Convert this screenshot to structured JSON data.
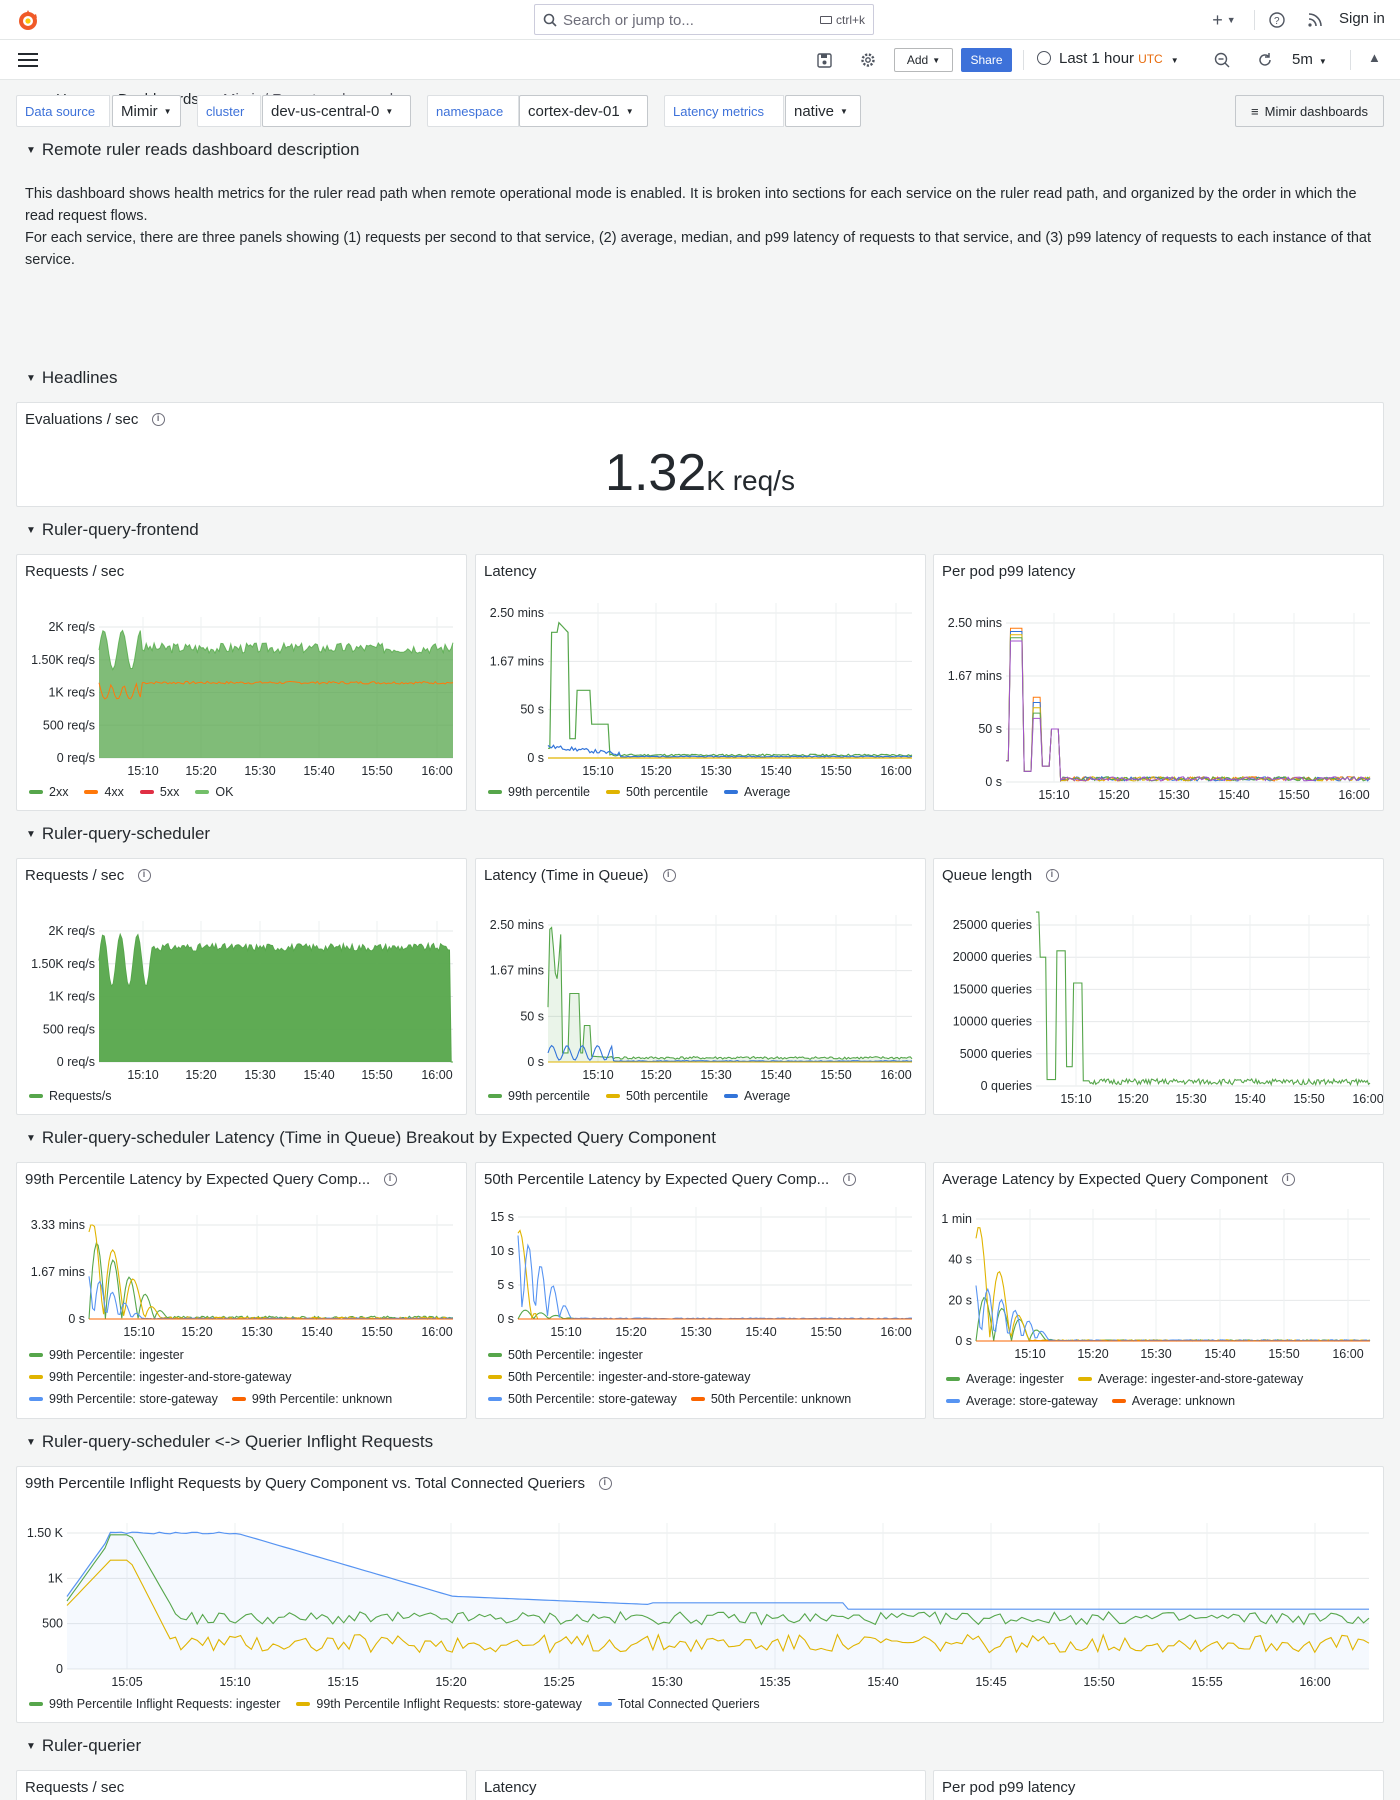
{
  "topbar": {
    "search_placeholder": "Search or jump to...",
    "search_shortcut": "ctrl+k",
    "sign_in": "Sign in"
  },
  "breadcrumb": [
    "Home",
    "Dashboards",
    "Mimir / Remote ruler reads"
  ],
  "toolbar": {
    "add_label": "Add",
    "share_label": "Share",
    "time_range": "Last 1 hour",
    "timezone": "UTC",
    "refresh_interval": "5m"
  },
  "variables": [
    {
      "label": "Data source",
      "value": "Mimir"
    },
    {
      "label": "cluster",
      "value": "dev-us-central-0"
    },
    {
      "label": "namespace",
      "value": "cortex-dev-01"
    },
    {
      "label": "Latency metrics",
      "value": "native"
    }
  ],
  "mimir_dashboards_button": "Mimir dashboards",
  "rows": {
    "description": "Remote ruler reads dashboard description",
    "headlines": "Headlines",
    "frontend": "Ruler-query-frontend",
    "scheduler": "Ruler-query-scheduler",
    "breakout": "Ruler-query-scheduler Latency (Time in Queue) Breakout by Expected Query Component",
    "inflight": "Ruler-query-scheduler <-> Querier Inflight Requests",
    "querier": "Ruler-querier"
  },
  "description_text": [
    "This dashboard shows health metrics for the ruler read path when remote operational mode is enabled. It is broken into sections for each service on the ruler read path, and organized by the order in which the read request flows.",
    "For each service, there are three panels showing (1) requests per second to that service, (2) average, median, and p99 latency of requests to that service, and (3) p99 latency of requests to each instance of that service."
  ],
  "headline_stat": {
    "title": "Evaluations / sec",
    "value": "1.32",
    "unit": "K req/s"
  },
  "colors": {
    "green": "#56a64b",
    "orange": "#ff780a",
    "red": "#e02f44",
    "yellow": "#e0b400",
    "blue": "#3274d9",
    "accent": "#3d71d9"
  },
  "panels": {
    "fe_rps": {
      "title": "Requests / sec",
      "yticks": [
        "2K req/s",
        "1.50K req/s",
        "1K req/s",
        "500 req/s",
        "0 req/s"
      ],
      "xticks": [
        "15:10",
        "15:20",
        "15:30",
        "15:40",
        "15:50",
        "16:00"
      ],
      "legend": [
        {
          "label": "2xx",
          "color": "#56a64b"
        },
        {
          "label": "4xx",
          "color": "#ff780a"
        },
        {
          "label": "5xx",
          "color": "#e02f44"
        },
        {
          "label": "OK",
          "color": "#73bf69"
        }
      ]
    },
    "fe_lat": {
      "title": "Latency",
      "yticks": [
        "2.50 mins",
        "1.67 mins",
        "50 s",
        "0 s"
      ],
      "xticks": [
        "15:10",
        "15:20",
        "15:30",
        "15:40",
        "15:50",
        "16:00"
      ],
      "legend": [
        {
          "label": "99th percentile",
          "color": "#56a64b"
        },
        {
          "label": "50th percentile",
          "color": "#e0b400"
        },
        {
          "label": "Average",
          "color": "#3274d9"
        }
      ]
    },
    "fe_pod": {
      "title": "Per pod p99 latency",
      "yticks": [
        "2.50 mins",
        "1.67 mins",
        "50 s",
        "0 s"
      ],
      "xticks": [
        "15:10",
        "15:20",
        "15:30",
        "15:40",
        "15:50",
        "16:00"
      ]
    },
    "sch_rps": {
      "title": "Requests / sec",
      "yticks": [
        "2K req/s",
        "1.50K req/s",
        "1K req/s",
        "500 req/s",
        "0 req/s"
      ],
      "xticks": [
        "15:10",
        "15:20",
        "15:30",
        "15:40",
        "15:50",
        "16:00"
      ],
      "legend": [
        {
          "label": "Requests/s",
          "color": "#56a64b"
        }
      ]
    },
    "sch_lat": {
      "title": "Latency (Time in Queue)",
      "yticks": [
        "2.50 mins",
        "1.67 mins",
        "50 s",
        "0 s"
      ],
      "xticks": [
        "15:10",
        "15:20",
        "15:30",
        "15:40",
        "15:50",
        "16:00"
      ],
      "legend": [
        {
          "label": "99th percentile",
          "color": "#56a64b"
        },
        {
          "label": "50th percentile",
          "color": "#e0b400"
        },
        {
          "label": "Average",
          "color": "#3274d9"
        }
      ]
    },
    "sch_queue": {
      "title": "Queue length",
      "yticks": [
        "25000 queries",
        "20000 queries",
        "15000 queries",
        "10000 queries",
        "5000 queries",
        "0 queries"
      ],
      "xticks": [
        "15:10",
        "15:20",
        "15:30",
        "15:40",
        "15:50",
        "16:00"
      ]
    },
    "bo_p99": {
      "title": "99th Percentile Latency by Expected Query Comp...",
      "yticks": [
        "3.33 mins",
        "1.67 mins",
        "0 s"
      ],
      "xticks": [
        "15:10",
        "15:20",
        "15:30",
        "15:40",
        "15:50",
        "16:00"
      ],
      "legend": [
        {
          "label": "99th Percentile: ingester",
          "color": "#56a64b"
        },
        {
          "label": "99th Percentile: ingester-and-store-gateway",
          "color": "#e0b400"
        },
        {
          "label": "99th Percentile: store-gateway",
          "color": "#5794f2"
        },
        {
          "label": "99th Percentile: unknown",
          "color": "#fa6400"
        }
      ]
    },
    "bo_p50": {
      "title": "50th Percentile Latency by Expected Query Comp...",
      "yticks": [
        "15 s",
        "10 s",
        "5 s",
        "0 s"
      ],
      "xticks": [
        "15:10",
        "15:20",
        "15:30",
        "15:40",
        "15:50",
        "16:00"
      ],
      "legend": [
        {
          "label": "50th Percentile: ingester",
          "color": "#56a64b"
        },
        {
          "label": "50th Percentile: ingester-and-store-gateway",
          "color": "#e0b400"
        },
        {
          "label": "50th Percentile: store-gateway",
          "color": "#5794f2"
        },
        {
          "label": "50th Percentile: unknown",
          "color": "#fa6400"
        }
      ]
    },
    "bo_avg": {
      "title": "Average Latency by Expected Query Component",
      "yticks": [
        "1 min",
        "40 s",
        "20 s",
        "0 s"
      ],
      "xticks": [
        "15:10",
        "15:20",
        "15:30",
        "15:40",
        "15:50",
        "16:00"
      ],
      "legend": [
        {
          "label": "Average: ingester",
          "color": "#56a64b"
        },
        {
          "label": "Average: ingester-and-store-gateway",
          "color": "#e0b400"
        },
        {
          "label": "Average: store-gateway",
          "color": "#5794f2"
        },
        {
          "label": "Average: unknown",
          "color": "#fa6400"
        }
      ]
    },
    "inflight": {
      "title": "99th Percentile Inflight Requests by Query Component vs. Total Connected Queriers",
      "yticks": [
        "1.50 K",
        "1K",
        "500",
        "0"
      ],
      "xticks": [
        "15:05",
        "15:10",
        "15:15",
        "15:20",
        "15:25",
        "15:30",
        "15:35",
        "15:40",
        "15:45",
        "15:50",
        "15:55",
        "16:00"
      ],
      "legend": [
        {
          "label": "99th Percentile Inflight Requests: ingester",
          "color": "#56a64b"
        },
        {
          "label": "99th Percentile Inflight Requests: store-gateway",
          "color": "#e0b400"
        },
        {
          "label": "Total Connected Queriers",
          "color": "#5794f2"
        }
      ]
    },
    "q_rps": {
      "title": "Requests / sec"
    },
    "q_lat": {
      "title": "Latency"
    },
    "q_pod": {
      "title": "Per pod p99 latency"
    }
  },
  "chart_data": [
    {
      "type": "area",
      "title": "Requests / sec",
      "ylim": [
        0,
        2000
      ],
      "series": [
        {
          "name": "OK",
          "values": [
            1900,
            1500,
            1600,
            1550,
            1700,
            1650,
            1700,
            1750,
            1700,
            1720,
            1700,
            1710,
            1700,
            1690,
            1700,
            1700,
            1680,
            1700,
            1700,
            1710
          ]
        },
        {
          "name": "4xx",
          "values": [
            1300,
            950,
            1050,
            1150,
            1150,
            1150,
            1150,
            1150,
            1150,
            1150,
            1150,
            1150,
            1150,
            1150,
            1150,
            1150,
            1150,
            1150,
            1150,
            1150
          ]
        }
      ]
    },
    {
      "type": "line",
      "title": "Latency",
      "series": [
        {
          "name": "99th percentile",
          "values": [
            0,
            140,
            145,
            30,
            80,
            60,
            2,
            3,
            2,
            3,
            2,
            2,
            3,
            2,
            2,
            2,
            2,
            2,
            2,
            2
          ]
        },
        {
          "name": "50th percentile",
          "values": [
            0,
            0,
            0,
            0,
            0,
            0,
            0,
            0,
            0,
            0,
            0,
            0,
            0,
            0,
            0,
            0,
            0,
            0,
            0,
            0
          ]
        },
        {
          "name": "Average",
          "values": [
            0,
            12,
            14,
            8,
            6,
            3,
            1,
            1,
            1,
            1,
            1,
            1,
            1,
            1,
            1,
            1,
            1,
            1,
            1,
            0
          ]
        }
      ]
    },
    {
      "type": "line",
      "title": "Queue length",
      "ylim": [
        0,
        25000
      ],
      "series": [
        {
          "values": [
            27000,
            20000,
            1000,
            22000,
            15000,
            1000,
            500,
            500,
            500,
            500,
            500,
            500,
            500,
            500,
            500,
            500,
            500,
            500,
            500,
            500
          ]
        }
      ]
    },
    {
      "type": "line",
      "title": "99th Percentile Inflight Requests by Query Component vs. Total Connected Queriers",
      "x": [
        "15:05",
        "15:10",
        "15:15",
        "15:20",
        "15:25",
        "15:30",
        "15:35",
        "15:40",
        "15:45",
        "15:50",
        "15:55",
        "16:00"
      ],
      "series": [
        {
          "name": "99th Percentile Inflight Requests: ingester",
          "values": [
            1500,
            600,
            550,
            600,
            550,
            580,
            550,
            560,
            560,
            560,
            550,
            560
          ]
        },
        {
          "name": "99th Percentile Inflight Requests: store-gateway",
          "values": [
            1200,
            400,
            300,
            350,
            250,
            300,
            280,
            300,
            280,
            300,
            260,
            260
          ]
        },
        {
          "name": "Total Connected Queriers",
          "values": [
            1500,
            1500,
            1250,
            900,
            750,
            750,
            650,
            650,
            650,
            650,
            650,
            650
          ]
        }
      ]
    }
  ]
}
